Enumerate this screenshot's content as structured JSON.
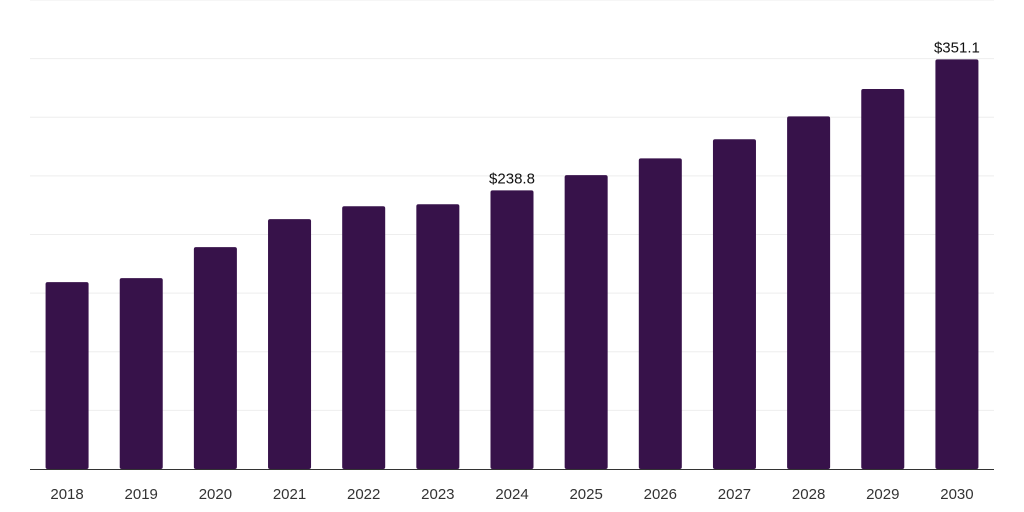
{
  "chart_data": {
    "type": "bar",
    "categories": [
      "2018",
      "2019",
      "2020",
      "2021",
      "2022",
      "2023",
      "2024",
      "2025",
      "2026",
      "2027",
      "2028",
      "2029",
      "2030"
    ],
    "values": [
      160.2,
      163.6,
      190.2,
      214.2,
      225.2,
      226.9,
      238.8,
      251.9,
      266.3,
      282.6,
      302.2,
      325.7,
      351.1
    ],
    "data_labels": [
      {
        "index": 6,
        "text": "$238.8"
      },
      {
        "index": 12,
        "text": "$351.1"
      }
    ],
    "ylim": [
      0,
      402
    ],
    "grid": true,
    "colors": {
      "bar": "#37124a",
      "grid": "#eeeeee",
      "axis": "#333333"
    }
  }
}
